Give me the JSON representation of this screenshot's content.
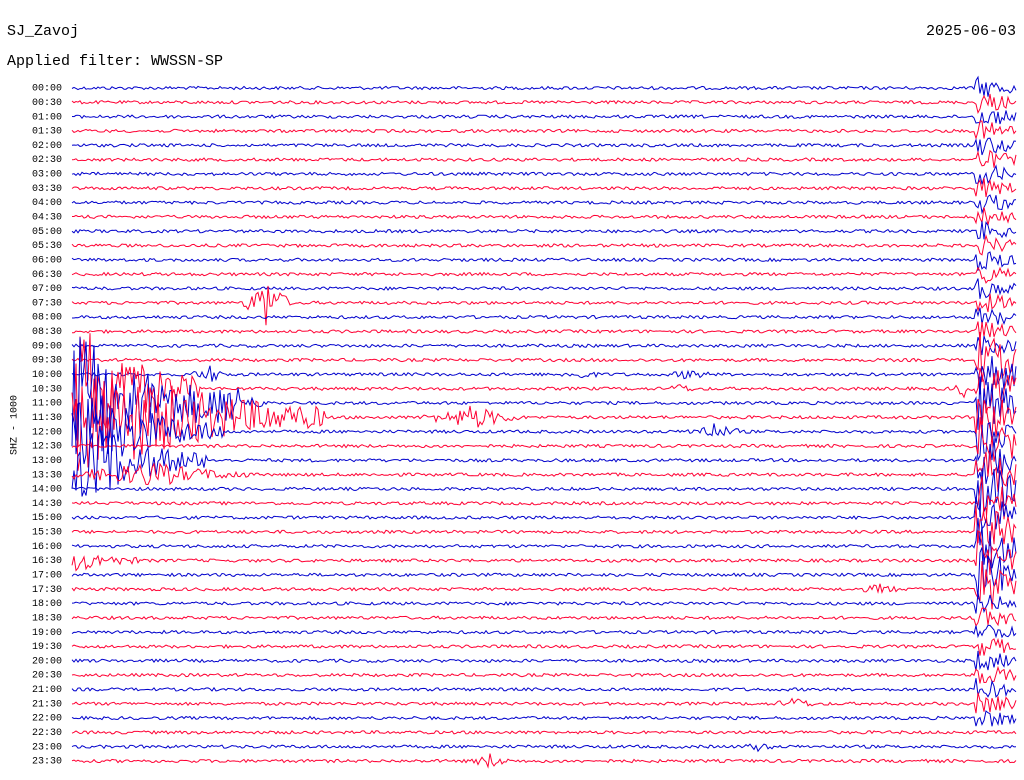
{
  "header": {
    "station": "SJ_Zavoj",
    "date": "2025-06-03",
    "filter": "Applied filter: WWSSN-SP"
  },
  "axis_label": "SHZ - 1000",
  "trace_colors": [
    "#0000cc",
    "#ff0033"
  ],
  "rows": [
    "00:00",
    "00:30",
    "01:00",
    "01:30",
    "02:00",
    "02:30",
    "03:00",
    "03:30",
    "04:00",
    "04:30",
    "05:00",
    "05:30",
    "06:00",
    "06:30",
    "07:00",
    "07:30",
    "08:00",
    "08:30",
    "09:00",
    "09:30",
    "10:00",
    "10:30",
    "11:00",
    "11:30",
    "12:00",
    "12:30",
    "13:00",
    "13:30",
    "14:00",
    "14:30",
    "15:00",
    "15:30",
    "16:00",
    "16:30",
    "17:00",
    "17:30",
    "18:00",
    "18:30",
    "19:00",
    "19:30",
    "20:00",
    "20:30",
    "21:00",
    "21:30",
    "22:00",
    "22:30",
    "23:00",
    "23:30"
  ]
}
